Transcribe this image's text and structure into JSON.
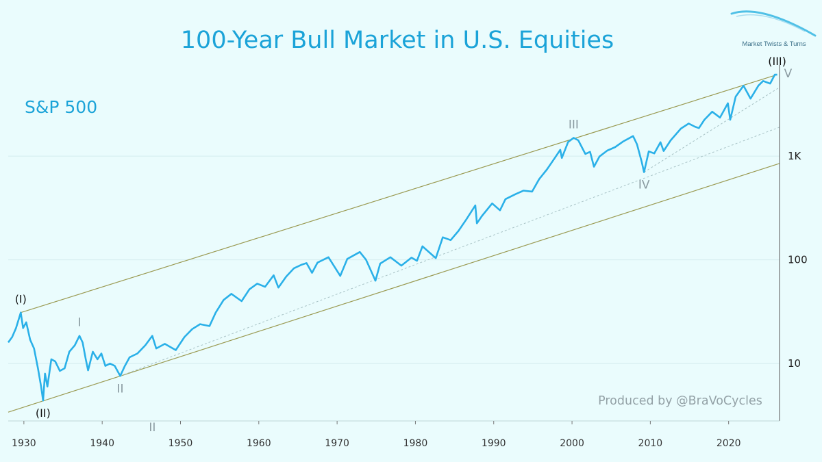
{
  "logo": {
    "text": "Market Twists & Turns"
  },
  "chart_data": {
    "type": "line",
    "title": "100-Year Bull Market in U.S. Equities",
    "series_label": "S&P 500",
    "credit": "Produced by @BraVoCycles",
    "y_scale": "log",
    "xlim": [
      1928,
      2026.5
    ],
    "ylim": [
      2.8,
      7000
    ],
    "x_ticks": [
      1930,
      1940,
      1950,
      1960,
      1970,
      1980,
      1990,
      2000,
      2010,
      2020
    ],
    "y_ticks": [
      {
        "value": 10,
        "label": "10"
      },
      {
        "value": 100,
        "label": "100"
      },
      {
        "value": 1000,
        "label": "1K"
      }
    ],
    "grid": "horizontal",
    "colors": {
      "line": "#2ab0e8",
      "channel": "#9a9a52",
      "title": "#1ba3d8",
      "wave_label": "#8a9aa0",
      "major_label": "#111111"
    },
    "series": [
      {
        "name": "S&P 500",
        "points": [
          [
            1928.0,
            16
          ],
          [
            1928.5,
            18
          ],
          [
            1929.0,
            22
          ],
          [
            1929.6,
            31
          ],
          [
            1929.9,
            22
          ],
          [
            1930.3,
            25
          ],
          [
            1930.8,
            17
          ],
          [
            1931.3,
            14
          ],
          [
            1931.8,
            9
          ],
          [
            1932.2,
            6
          ],
          [
            1932.45,
            4.4
          ],
          [
            1932.7,
            8
          ],
          [
            1933.0,
            6
          ],
          [
            1933.5,
            11
          ],
          [
            1934.0,
            10.5
          ],
          [
            1934.6,
            8.5
          ],
          [
            1935.2,
            9
          ],
          [
            1935.8,
            13
          ],
          [
            1936.5,
            15
          ],
          [
            1937.1,
            18.5
          ],
          [
            1937.5,
            16
          ],
          [
            1937.9,
            11
          ],
          [
            1938.2,
            8.6
          ],
          [
            1938.8,
            13
          ],
          [
            1939.4,
            11
          ],
          [
            1939.9,
            12.5
          ],
          [
            1940.4,
            9.5
          ],
          [
            1941.0,
            10
          ],
          [
            1941.6,
            9.5
          ],
          [
            1942.3,
            7.6
          ],
          [
            1942.9,
            9.5
          ],
          [
            1943.5,
            11.5
          ],
          [
            1944.5,
            12.5
          ],
          [
            1945.5,
            15
          ],
          [
            1946.4,
            18.5
          ],
          [
            1946.9,
            14
          ],
          [
            1948.0,
            15.5
          ],
          [
            1949.4,
            13.5
          ],
          [
            1950.5,
            18
          ],
          [
            1951.5,
            21.5
          ],
          [
            1952.5,
            24
          ],
          [
            1953.7,
            23
          ],
          [
            1954.5,
            31
          ],
          [
            1955.5,
            41
          ],
          [
            1956.5,
            47
          ],
          [
            1957.8,
            40
          ],
          [
            1958.8,
            52
          ],
          [
            1959.8,
            59
          ],
          [
            1960.8,
            55
          ],
          [
            1961.9,
            71
          ],
          [
            1962.5,
            54
          ],
          [
            1963.5,
            69
          ],
          [
            1964.5,
            83
          ],
          [
            1965.5,
            90
          ],
          [
            1966.1,
            93
          ],
          [
            1966.8,
            75
          ],
          [
            1967.5,
            94
          ],
          [
            1968.9,
            106
          ],
          [
            1970.4,
            70
          ],
          [
            1971.3,
            102
          ],
          [
            1972.9,
            119
          ],
          [
            1973.7,
            100
          ],
          [
            1974.9,
            63
          ],
          [
            1975.5,
            92
          ],
          [
            1976.8,
            106
          ],
          [
            1978.2,
            88
          ],
          [
            1979.5,
            105
          ],
          [
            1980.2,
            98
          ],
          [
            1980.9,
            135
          ],
          [
            1982.6,
            104
          ],
          [
            1983.5,
            165
          ],
          [
            1984.5,
            155
          ],
          [
            1985.5,
            190
          ],
          [
            1986.5,
            245
          ],
          [
            1987.65,
            335
          ],
          [
            1987.85,
            225
          ],
          [
            1988.5,
            265
          ],
          [
            1989.8,
            350
          ],
          [
            1990.8,
            300
          ],
          [
            1991.5,
            385
          ],
          [
            1992.8,
            430
          ],
          [
            1993.8,
            465
          ],
          [
            1994.9,
            455
          ],
          [
            1995.8,
            600
          ],
          [
            1996.8,
            745
          ],
          [
            1997.8,
            960
          ],
          [
            1998.5,
            1150
          ],
          [
            1998.7,
            960
          ],
          [
            1999.5,
            1370
          ],
          [
            2000.2,
            1500
          ],
          [
            2000.8,
            1420
          ],
          [
            2001.7,
            1050
          ],
          [
            2002.3,
            1100
          ],
          [
            2002.8,
            790
          ],
          [
            2003.5,
            990
          ],
          [
            2004.5,
            1130
          ],
          [
            2005.5,
            1220
          ],
          [
            2006.5,
            1380
          ],
          [
            2007.8,
            1560
          ],
          [
            2008.3,
            1300
          ],
          [
            2008.9,
            880
          ],
          [
            2009.2,
            700
          ],
          [
            2009.8,
            1110
          ],
          [
            2010.5,
            1060
          ],
          [
            2011.3,
            1360
          ],
          [
            2011.7,
            1120
          ],
          [
            2012.6,
            1420
          ],
          [
            2013.9,
            1840
          ],
          [
            2014.9,
            2060
          ],
          [
            2015.7,
            1920
          ],
          [
            2016.2,
            1860
          ],
          [
            2016.9,
            2240
          ],
          [
            2017.9,
            2680
          ],
          [
            2018.9,
            2350
          ],
          [
            2019.9,
            3230
          ],
          [
            2020.2,
            2240
          ],
          [
            2020.9,
            3750
          ],
          [
            2021.9,
            4770
          ],
          [
            2022.8,
            3580
          ],
          [
            2023.8,
            4770
          ],
          [
            2024.4,
            5300
          ],
          [
            2025.3,
            5000
          ],
          [
            2025.9,
            6100
          ],
          [
            2026.2,
            6100
          ]
        ]
      }
    ],
    "channel_lines": [
      {
        "style": "solid",
        "from": [
          1929.6,
          31
        ],
        "to": [
          2026.2,
          6100
        ]
      },
      {
        "style": "solid",
        "from": [
          1928.0,
          3.4
        ],
        "to": [
          2026.5,
          850
        ]
      },
      {
        "style": "dashed",
        "from": [
          1942.3,
          7.6
        ],
        "to": [
          2026.5,
          1900
        ]
      },
      {
        "style": "dashed",
        "from": [
          2009.2,
          700
        ],
        "to": [
          2026.5,
          4600
        ]
      }
    ],
    "wave_labels": [
      {
        "text": "(I)",
        "x": 1929.6,
        "y": 31,
        "major": true,
        "pos": "above"
      },
      {
        "text": "(II)",
        "x": 1932.45,
        "y": 4.4,
        "major": true,
        "pos": "below"
      },
      {
        "text": "(III)",
        "x": 2026.2,
        "y": 6100,
        "major": true,
        "pos": "above"
      },
      {
        "text": "I",
        "x": 1937.1,
        "y": 18.5,
        "major": false,
        "pos": "above"
      },
      {
        "text": "II",
        "x": 1942.3,
        "y": 7.6,
        "major": false,
        "pos": "below"
      },
      {
        "text": "III",
        "x": 2000.2,
        "y": 1500,
        "major": false,
        "pos": "above"
      },
      {
        "text": "IV",
        "x": 2009.2,
        "y": 700,
        "major": false,
        "pos": "below"
      },
      {
        "text": "V",
        "x": 2026.2,
        "y": 6100,
        "major": false,
        "pos": "right"
      },
      {
        "text": "II",
        "x": 1946.4,
        "y": 3.2,
        "major": false,
        "pos": "below"
      }
    ]
  }
}
